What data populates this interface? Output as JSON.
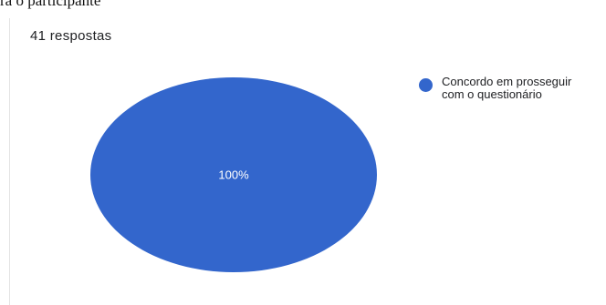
{
  "header_fragment": "ra o participante",
  "response_count": "41 respostas",
  "colors": {
    "slice_1": "#3366cc",
    "slice_label": "#ffffff"
  },
  "chart_data": {
    "type": "pie",
    "slices": [
      {
        "label": "Concordo em prosseguir com o questionário",
        "value": 100,
        "display": "100%"
      }
    ],
    "legend_position": "right"
  }
}
